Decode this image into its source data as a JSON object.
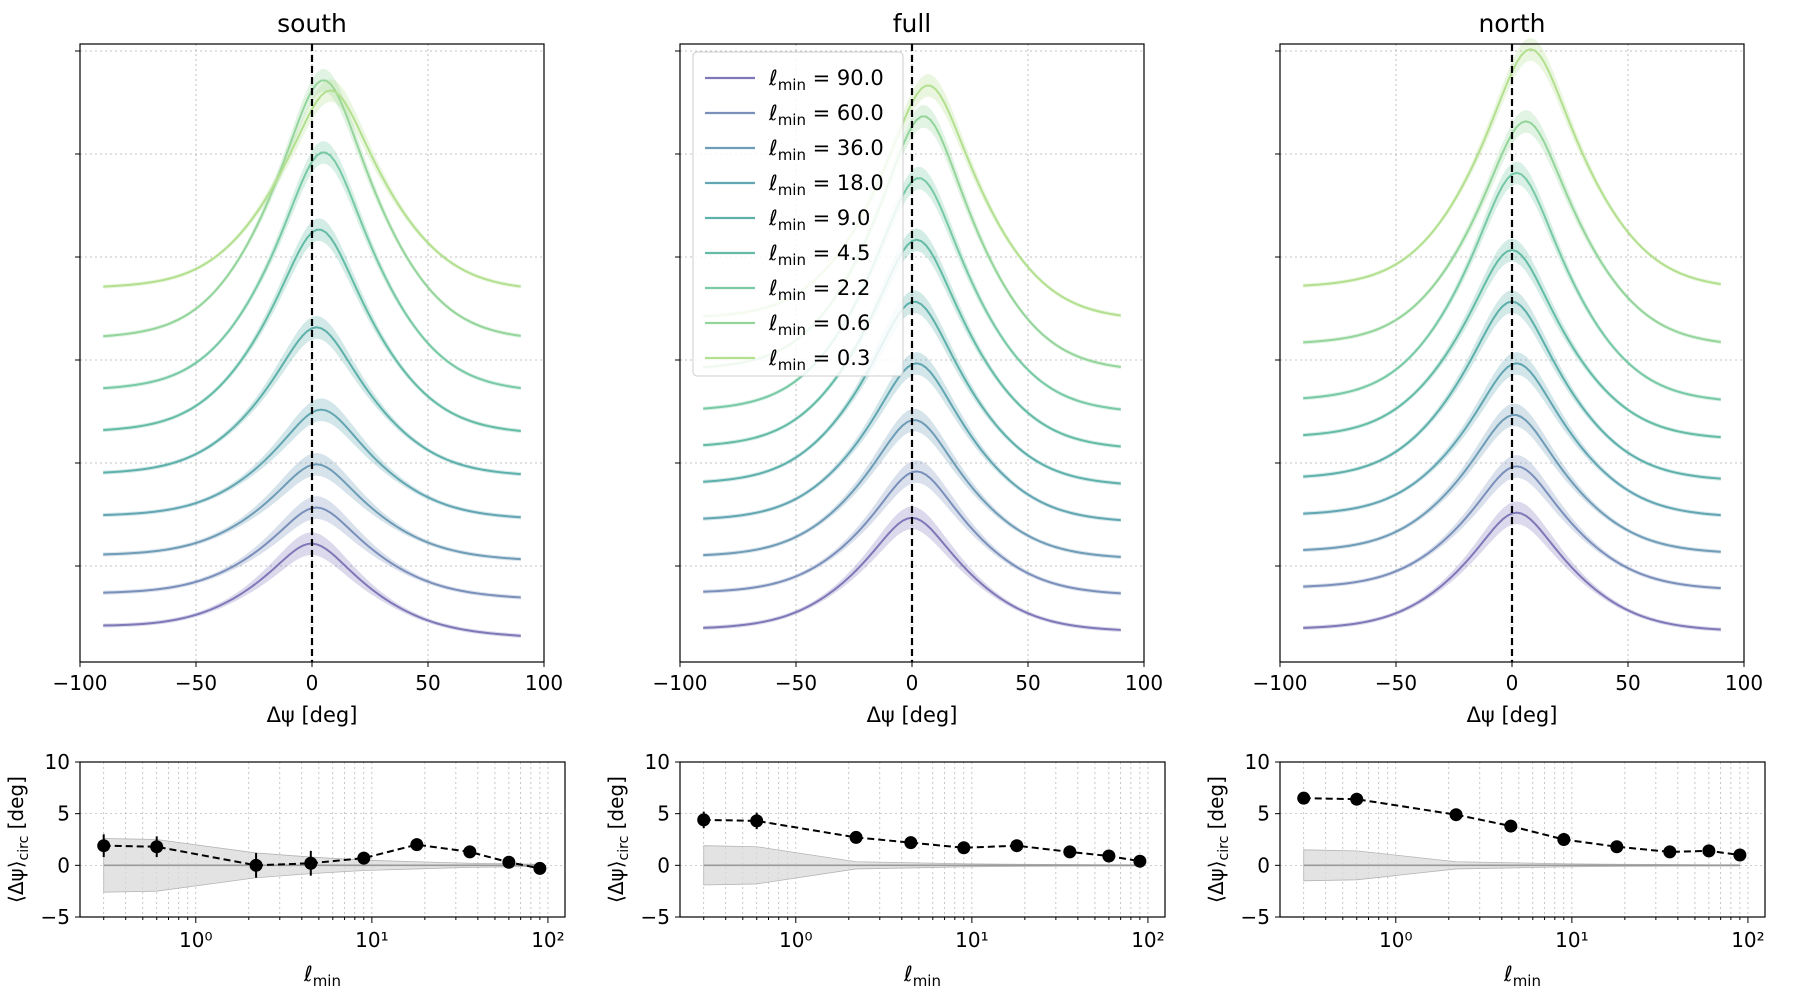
{
  "figure": {
    "legend_prefix": "ℓ",
    "legend_sub": "min",
    "legend_eq": "=",
    "colors": {
      "l90": "#7f78b8",
      "l60": "#7a90bb",
      "l36": "#6f9cb6",
      "l18": "#62a6b2",
      "l9": "#5eb0ab",
      "l4_5": "#64bca6",
      "l2_2": "#78c9a5",
      "l0_6": "#94d59c",
      "l0_3": "#b3e08f",
      "zero_line": "#000000",
      "grid": "#b0b0b0",
      "band": "#d9d9d9",
      "band_edge": "#b5b5b5"
    }
  },
  "chart_data": [
    {
      "type": "line",
      "title": "south",
      "xlabel": "Δψ [deg]",
      "ylabel": "",
      "xlim": [
        -100,
        100
      ],
      "xticks": [
        "−100",
        "−50",
        "0",
        "50",
        "100"
      ],
      "xtick_values": [
        -100,
        -50,
        0,
        50,
        100
      ],
      "ylim": [
        -0.3,
        5.7
      ],
      "x_range": [
        -90,
        90
      ],
      "series": [
        {
          "name": "90.0",
          "color_key": "l90",
          "offset": 0.0,
          "peak": 0.85,
          "peak_x": 0,
          "left_base": 0.03,
          "right_base": -0.07
        },
        {
          "name": "60.0",
          "color_key": "l60",
          "offset": 0.35,
          "peak": 0.85,
          "peak_x": 2,
          "left_base": 0.0,
          "right_base": -0.05
        },
        {
          "name": "36.0",
          "color_key": "l36",
          "offset": 0.72,
          "peak": 0.9,
          "peak_x": 2,
          "left_base": 0.0,
          "right_base": -0.05
        },
        {
          "name": "18.0",
          "color_key": "l18",
          "offset": 1.1,
          "peak": 1.05,
          "peak_x": 4,
          "left_base": 0.0,
          "right_base": -0.03
        },
        {
          "name": "9.0",
          "color_key": "l9",
          "offset": 1.5,
          "peak": 1.45,
          "peak_x": 2,
          "left_base": 0.0,
          "right_base": -0.02
        },
        {
          "name": "4.5",
          "color_key": "l4_5",
          "offset": 1.9,
          "peak": 2.0,
          "peak_x": 3,
          "left_base": 0.0,
          "right_base": -0.02
        },
        {
          "name": "2.2",
          "color_key": "l2_2",
          "offset": 2.3,
          "peak": 2.35,
          "peak_x": 5,
          "left_base": 0.0,
          "right_base": -0.02
        },
        {
          "name": "0.6",
          "color_key": "l0_6",
          "offset": 2.8,
          "peak": 2.55,
          "peak_x": 5,
          "left_base": 0.0,
          "right_base": -0.02
        },
        {
          "name": "0.3",
          "color_key": "l0_3",
          "offset": 3.3,
          "peak": 1.95,
          "peak_x": 8,
          "left_base": 0.0,
          "right_base": -0.03
        }
      ]
    },
    {
      "type": "line",
      "title": "full",
      "xlabel": "Δψ [deg]",
      "ylabel": "",
      "xlim": [
        -100,
        100
      ],
      "xticks": [
        "−100",
        "−50",
        "0",
        "50",
        "100"
      ],
      "xtick_values": [
        -100,
        -50,
        0,
        50,
        100
      ],
      "ylim": [
        -0.3,
        5.7
      ],
      "x_range": [
        -90,
        90
      ],
      "legend": {
        "location": "upper-left"
      },
      "series": [
        {
          "name": "90.0",
          "color_key": "l90",
          "offset": 0.0,
          "peak": 1.1,
          "peak_x": 0,
          "left_base": 0.0,
          "right_base": -0.02
        },
        {
          "name": "60.0",
          "color_key": "l60",
          "offset": 0.35,
          "peak": 1.2,
          "peak_x": 2,
          "left_base": 0.0,
          "right_base": -0.02
        },
        {
          "name": "36.0",
          "color_key": "l36",
          "offset": 0.7,
          "peak": 1.35,
          "peak_x": 1,
          "left_base": 0.0,
          "right_base": -0.02
        },
        {
          "name": "18.0",
          "color_key": "l18",
          "offset": 1.05,
          "peak": 1.55,
          "peak_x": 2,
          "left_base": 0.0,
          "right_base": -0.02
        },
        {
          "name": "9.0",
          "color_key": "l9",
          "offset": 1.4,
          "peak": 1.8,
          "peak_x": 1,
          "left_base": 0.0,
          "right_base": -0.02
        },
        {
          "name": "4.5",
          "color_key": "l4_5",
          "offset": 1.75,
          "peak": 2.05,
          "peak_x": 2,
          "left_base": 0.0,
          "right_base": -0.02
        },
        {
          "name": "2.2",
          "color_key": "l2_2",
          "offset": 2.1,
          "peak": 2.3,
          "peak_x": 3,
          "left_base": 0.0,
          "right_base": -0.02
        },
        {
          "name": "0.6",
          "color_key": "l0_6",
          "offset": 2.5,
          "peak": 2.5,
          "peak_x": 5,
          "left_base": 0.0,
          "right_base": -0.02
        },
        {
          "name": "0.3",
          "color_key": "l0_3",
          "offset": 3.0,
          "peak": 2.3,
          "peak_x": 7,
          "left_base": 0.0,
          "right_base": -0.02
        }
      ]
    },
    {
      "type": "line",
      "title": "north",
      "xlabel": "Δψ [deg]",
      "ylabel": "",
      "xlim": [
        -100,
        100
      ],
      "xticks": [
        "−100",
        "−50",
        "0",
        "50",
        "100"
      ],
      "xtick_values": [
        -100,
        -50,
        0,
        50,
        100
      ],
      "ylim": [
        -0.3,
        5.7
      ],
      "x_range": [
        -90,
        90
      ],
      "series": [
        {
          "name": "90.0",
          "color_key": "l90",
          "offset": 0.0,
          "peak": 1.15,
          "peak_x": 2,
          "left_base": 0.0,
          "right_base": -0.02
        },
        {
          "name": "60.0",
          "color_key": "l60",
          "offset": 0.4,
          "peak": 1.2,
          "peak_x": 2,
          "left_base": 0.0,
          "right_base": -0.02
        },
        {
          "name": "36.0",
          "color_key": "l36",
          "offset": 0.75,
          "peak": 1.35,
          "peak_x": 1,
          "left_base": 0.0,
          "right_base": -0.02
        },
        {
          "name": "18.0",
          "color_key": "l18",
          "offset": 1.1,
          "peak": 1.5,
          "peak_x": 2,
          "left_base": 0.0,
          "right_base": -0.02
        },
        {
          "name": "9.0",
          "color_key": "l9",
          "offset": 1.45,
          "peak": 1.75,
          "peak_x": 0,
          "left_base": 0.0,
          "right_base": -0.02
        },
        {
          "name": "4.5",
          "color_key": "l4_5",
          "offset": 1.85,
          "peak": 1.85,
          "peak_x": 0,
          "left_base": 0.0,
          "right_base": -0.02
        },
        {
          "name": "2.2",
          "color_key": "l2_2",
          "offset": 2.2,
          "peak": 2.25,
          "peak_x": 2,
          "left_base": 0.0,
          "right_base": -0.02
        },
        {
          "name": "0.6",
          "color_key": "l0_6",
          "offset": 2.75,
          "peak": 2.2,
          "peak_x": 6,
          "left_base": 0.0,
          "right_base": -0.02
        },
        {
          "name": "0.3",
          "color_key": "l0_3",
          "offset": 3.3,
          "peak": 2.35,
          "peak_x": 8,
          "left_base": 0.0,
          "right_base": -0.02
        }
      ]
    },
    {
      "type": "scatter",
      "title": "south",
      "xlabel": "ℓmin",
      "ylabel": "⟨Δψ⟩circ [deg]",
      "xscale": "log",
      "xlim": [
        0.22,
        125
      ],
      "ylim": [
        -5,
        10
      ],
      "yticks": [
        -5,
        0,
        5,
        10
      ],
      "xticks": [
        "10⁰",
        "10¹",
        "10²"
      ],
      "x": [
        0.3,
        0.6,
        2.2,
        4.5,
        9.0,
        18.0,
        36.0,
        60.0,
        90.0
      ],
      "y": [
        1.9,
        1.8,
        0.0,
        0.2,
        0.7,
        2.0,
        1.3,
        0.3,
        -0.3
      ],
      "yerr": [
        1.1,
        1.0,
        1.2,
        1.2,
        0.6,
        0.6,
        0.4,
        0.3,
        0.3
      ],
      "band_x": [
        0.3,
        0.6,
        2.2,
        4.5,
        9.0,
        18.0,
        36.0,
        60.0,
        90.0
      ],
      "band_half": [
        2.6,
        2.5,
        1.2,
        0.8,
        0.5,
        0.35,
        0.2,
        0.15,
        0.1
      ]
    },
    {
      "type": "scatter",
      "title": "full",
      "xlabel": "ℓmin",
      "ylabel": "⟨Δψ⟩circ [deg]",
      "xscale": "log",
      "xlim": [
        0.22,
        125
      ],
      "ylim": [
        -5,
        10
      ],
      "yticks": [
        -5,
        0,
        5,
        10
      ],
      "xticks": [
        "10⁰",
        "10¹",
        "10²"
      ],
      "x": [
        0.3,
        0.6,
        2.2,
        4.5,
        9.0,
        18.0,
        36.0,
        60.0,
        90.0
      ],
      "y": [
        4.4,
        4.3,
        2.7,
        2.2,
        1.7,
        1.9,
        1.3,
        0.9,
        0.4
      ],
      "yerr": [
        0.8,
        0.8,
        0.4,
        0.4,
        0.3,
        0.3,
        0.3,
        0.2,
        0.2
      ],
      "band_x": [
        0.3,
        0.6,
        2.2,
        4.5,
        9.0,
        18.0,
        36.0,
        60.0,
        90.0
      ],
      "band_half": [
        1.9,
        1.8,
        0.35,
        0.25,
        0.15,
        0.1,
        0.08,
        0.06,
        0.05
      ]
    },
    {
      "type": "scatter",
      "title": "north",
      "xlabel": "ℓmin",
      "ylabel": "⟨Δψ⟩circ [deg]",
      "xscale": "log",
      "xlim": [
        0.22,
        125
      ],
      "ylim": [
        -5,
        10
      ],
      "yticks": [
        -5,
        0,
        5,
        10
      ],
      "xticks": [
        "10⁰",
        "10¹",
        "10²"
      ],
      "x": [
        0.3,
        0.6,
        2.2,
        4.5,
        9.0,
        18.0,
        36.0,
        60.0,
        90.0
      ],
      "y": [
        6.5,
        6.4,
        4.9,
        3.8,
        2.5,
        1.8,
        1.3,
        1.4,
        1.0
      ],
      "yerr": [
        0.3,
        0.3,
        0.3,
        0.3,
        0.6,
        0.3,
        0.3,
        0.2,
        0.2
      ],
      "band_x": [
        0.3,
        0.6,
        2.2,
        4.5,
        9.0,
        18.0,
        36.0,
        60.0,
        90.0
      ],
      "band_half": [
        1.5,
        1.4,
        0.35,
        0.25,
        0.15,
        0.1,
        0.08,
        0.06,
        0.05
      ]
    }
  ]
}
